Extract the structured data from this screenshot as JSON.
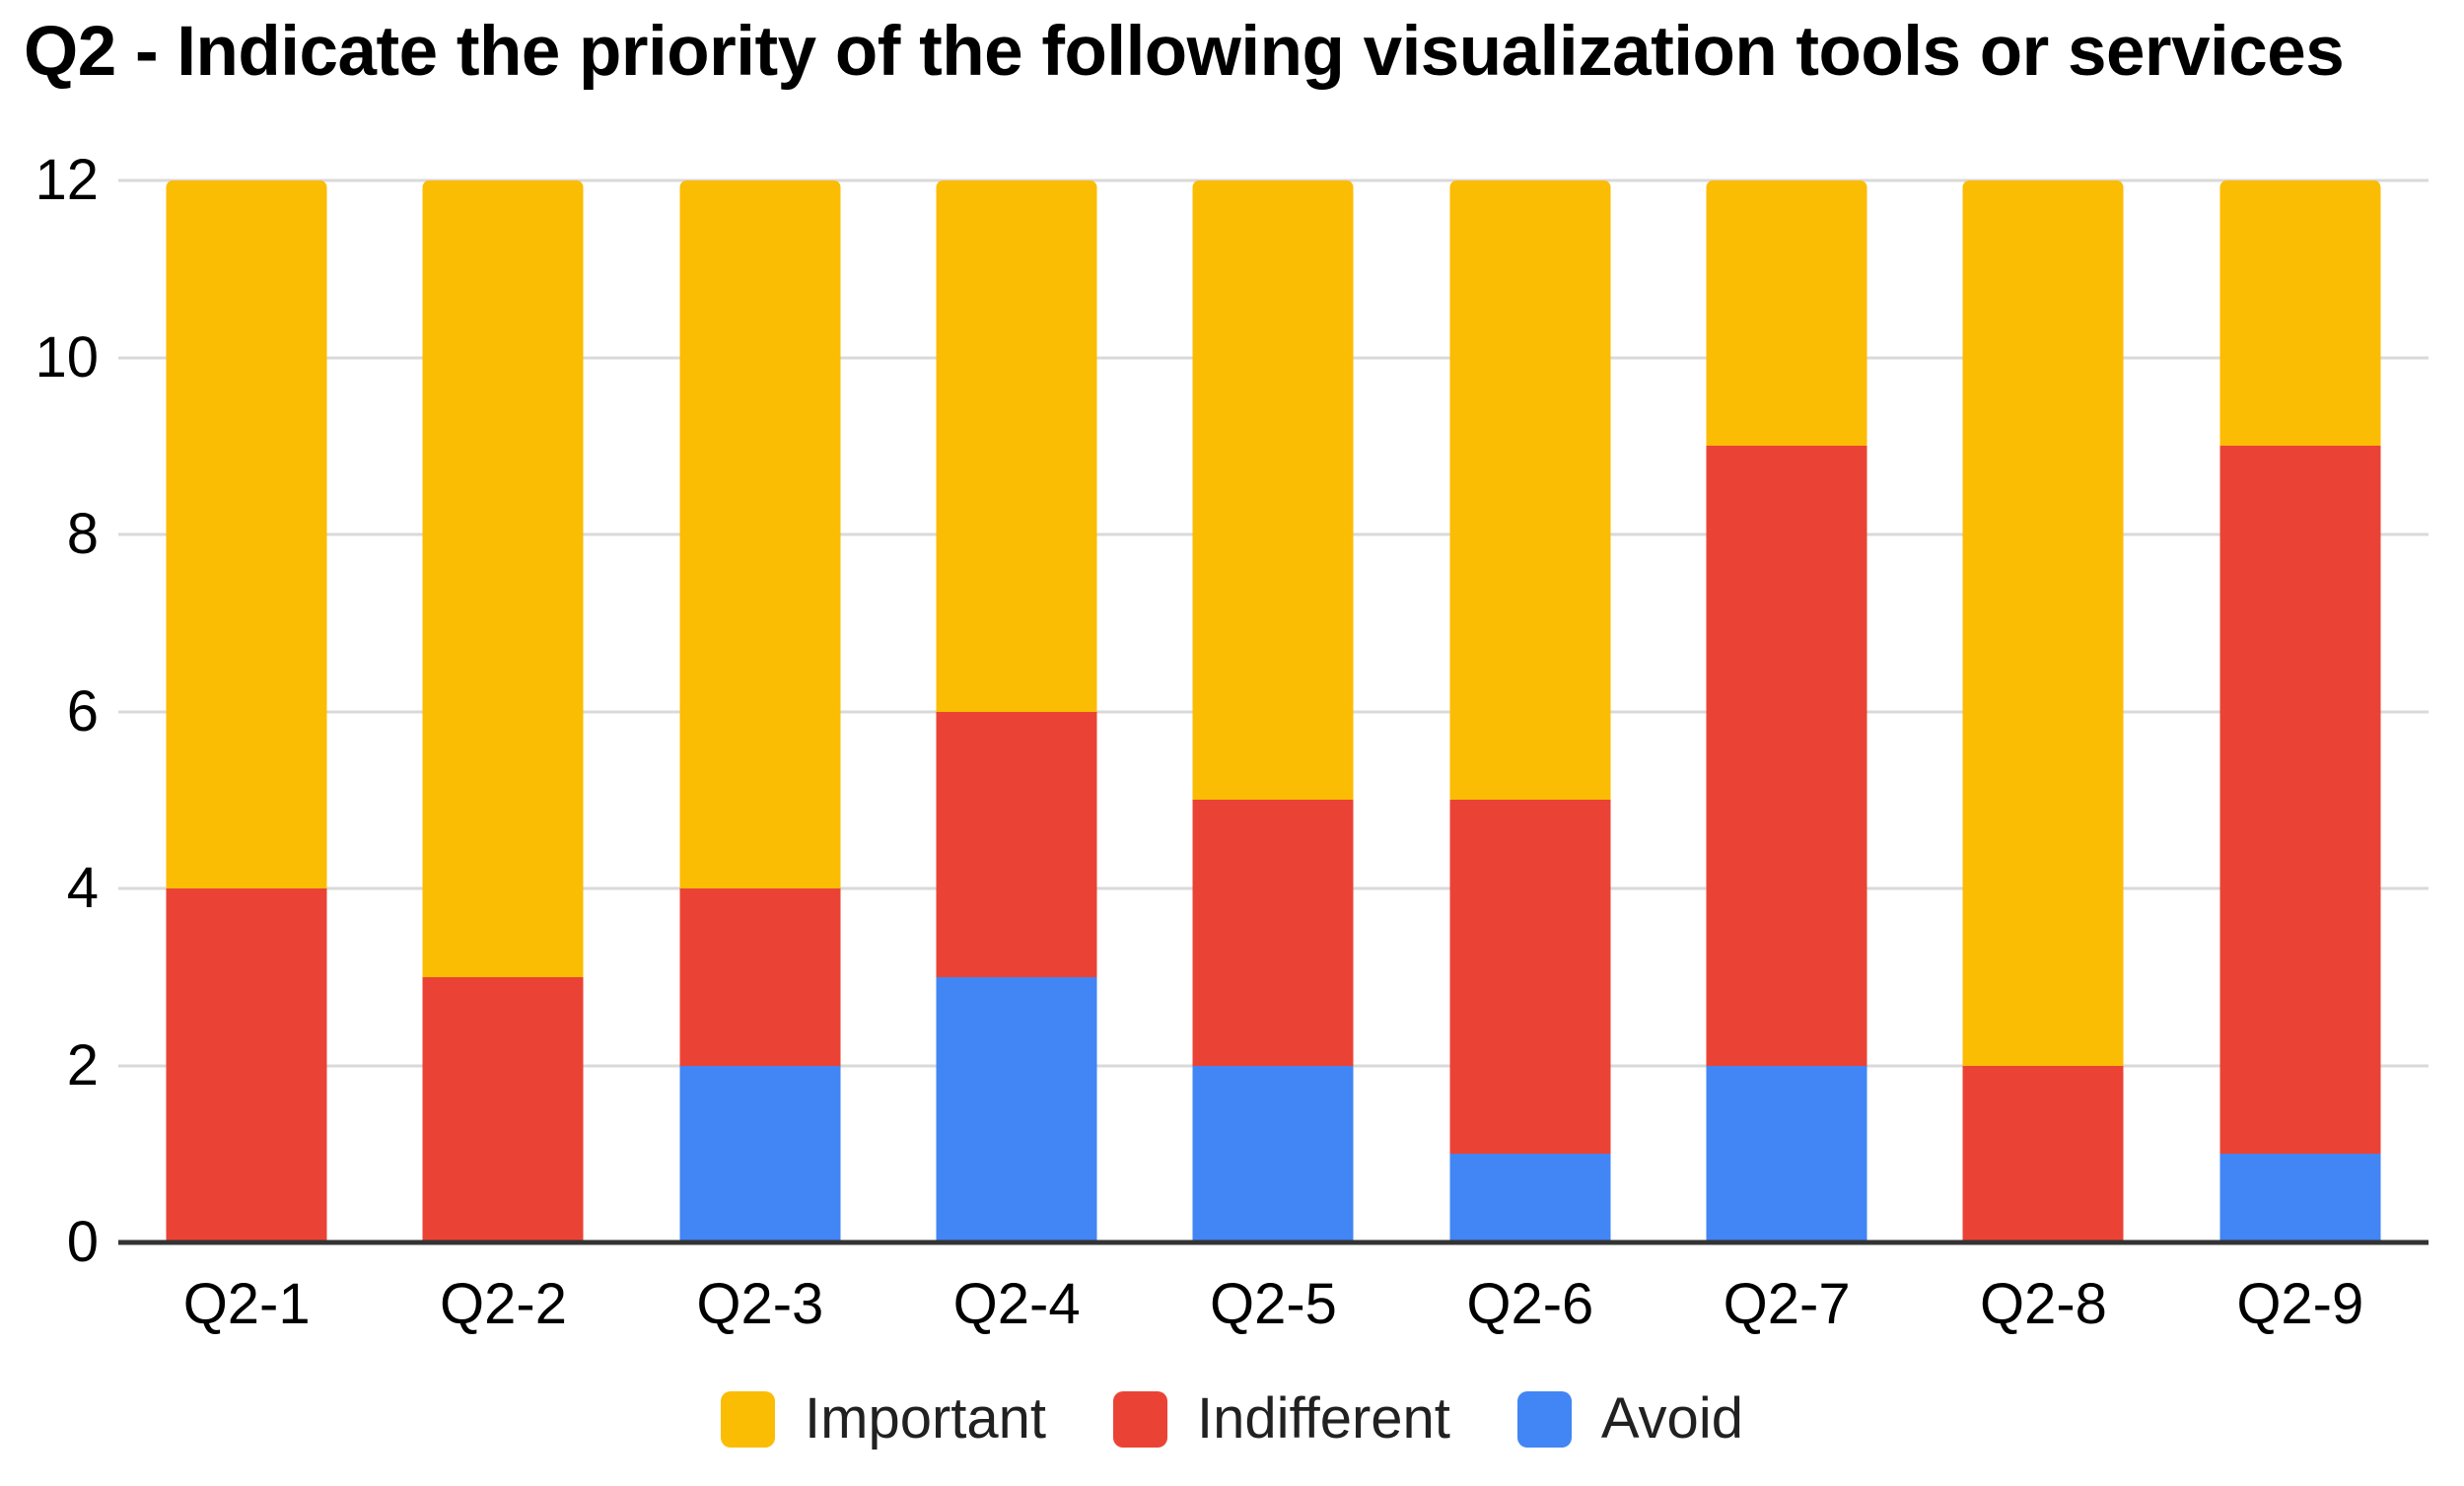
{
  "chart": {
    "title": "Q2 - Indicate the priority of the following visualization tools or services"
  },
  "chart_data": {
    "type": "bar",
    "stacked": true,
    "title": "Q2 - Indicate the priority of the following visualization tools or services",
    "categories": [
      "Q2-1",
      "Q2-2",
      "Q2-3",
      "Q2-4",
      "Q2-5",
      "Q2-6",
      "Q2-7",
      "Q2-8",
      "Q2-9"
    ],
    "series": [
      {
        "name": "Important",
        "color": "#FBBC04",
        "values": [
          8,
          9,
          8,
          6,
          7,
          7,
          3,
          10,
          3
        ]
      },
      {
        "name": "Indifferent",
        "color": "#EA4335",
        "values": [
          4,
          3,
          2,
          3,
          3,
          4,
          7,
          2,
          8
        ]
      },
      {
        "name": "Avoid",
        "color": "#4285F4",
        "values": [
          0,
          0,
          2,
          3,
          2,
          1,
          2,
          0,
          1
        ]
      }
    ],
    "stack_order_bottom_to_top": [
      "Avoid",
      "Indifferent",
      "Important"
    ],
    "xlabel": "",
    "ylabel": "",
    "ylim": [
      0,
      12
    ],
    "yticks": [
      0,
      2,
      4,
      6,
      8,
      10,
      12
    ],
    "grid": true,
    "gridline_color": "#d9d9d9",
    "baseline_color": "#333333",
    "legend_position": "bottom",
    "legend": [
      "Important",
      "Indifferent",
      "Avoid"
    ]
  }
}
